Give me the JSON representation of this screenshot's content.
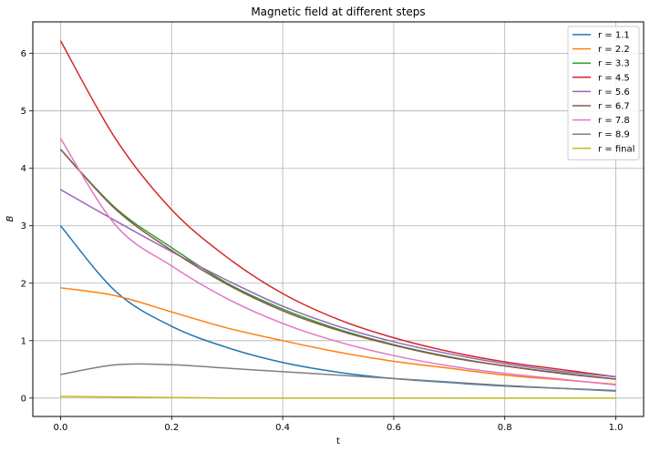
{
  "chart_data": {
    "type": "line",
    "title": "Magnetic field at different steps",
    "xlabel": "t",
    "ylabel": "B",
    "xlim": [
      -0.05,
      1.05
    ],
    "ylim": [
      -0.32,
      6.55
    ],
    "xticks": [
      0.0,
      0.2,
      0.4,
      0.6,
      0.8,
      1.0
    ],
    "xtick_labels": [
      "0.0",
      "0.2",
      "0.4",
      "0.6",
      "0.8",
      "1.0"
    ],
    "yticks": [
      0,
      1,
      2,
      3,
      4,
      5,
      6
    ],
    "ytick_labels": [
      "0",
      "1",
      "2",
      "3",
      "4",
      "5",
      "6"
    ],
    "grid": true,
    "legend_position": "upper right",
    "x": [
      0.0,
      0.1,
      0.2,
      0.3,
      0.4,
      0.5,
      0.6,
      0.7,
      0.8,
      0.9,
      1.0
    ],
    "series": [
      {
        "name": "r = 1.1",
        "color": "#1f77b4",
        "values": [
          3.0,
          1.85,
          1.25,
          0.88,
          0.62,
          0.45,
          0.34,
          0.27,
          0.21,
          0.17,
          0.13
        ]
      },
      {
        "name": "r = 2.2",
        "color": "#ff7f0e",
        "values": [
          1.92,
          1.78,
          1.5,
          1.22,
          1.0,
          0.8,
          0.64,
          0.52,
          0.4,
          0.32,
          0.24
        ]
      },
      {
        "name": "r = 3.3",
        "color": "#2ca02c",
        "values": [
          4.33,
          3.3,
          2.62,
          2.0,
          1.55,
          1.2,
          0.93,
          0.72,
          0.56,
          0.44,
          0.33
        ]
      },
      {
        "name": "r = 4.5",
        "color": "#d62728",
        "values": [
          6.22,
          4.5,
          3.28,
          2.45,
          1.82,
          1.37,
          1.05,
          0.81,
          0.63,
          0.5,
          0.37
        ]
      },
      {
        "name": "r = 5.6",
        "color": "#9467bd",
        "values": [
          3.63,
          3.08,
          2.55,
          2.05,
          1.6,
          1.25,
          0.98,
          0.77,
          0.6,
          0.47,
          0.37
        ]
      },
      {
        "name": "r = 6.7",
        "color": "#8c564b",
        "values": [
          4.33,
          3.28,
          2.57,
          1.98,
          1.52,
          1.18,
          0.92,
          0.71,
          0.56,
          0.43,
          0.33
        ]
      },
      {
        "name": "r = 7.8",
        "color": "#e377c2",
        "values": [
          4.52,
          3.0,
          2.3,
          1.73,
          1.3,
          0.98,
          0.74,
          0.56,
          0.43,
          0.33,
          0.23
        ]
      },
      {
        "name": "r = 8.9",
        "color": "#7f7f7f",
        "values": [
          0.41,
          0.58,
          0.58,
          0.52,
          0.46,
          0.4,
          0.34,
          0.28,
          0.22,
          0.17,
          0.12
        ]
      },
      {
        "name": "r = final",
        "color": "#bcbd22",
        "values": [
          0.03,
          0.02,
          0.01,
          0.0,
          0.0,
          0.0,
          0.0,
          0.0,
          0.0,
          0.0,
          0.0
        ]
      }
    ]
  }
}
